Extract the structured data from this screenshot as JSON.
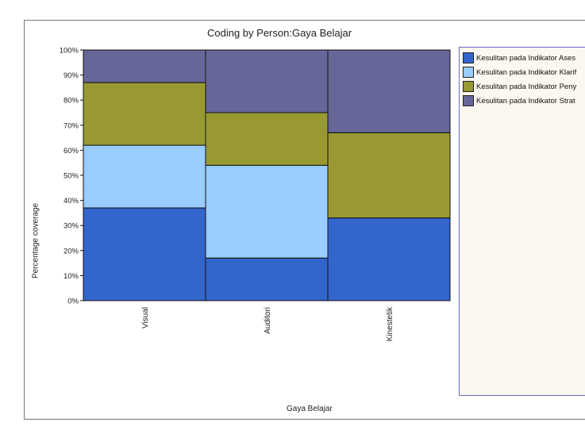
{
  "chart_data": {
    "type": "bar",
    "stacked": true,
    "percent": true,
    "title": "Coding by Person:Gaya Belajar",
    "xlabel": "Gaya Belajar",
    "ylabel": "Percentage coverage",
    "categories": [
      "Visual",
      "Auditori",
      "Kinestetik"
    ],
    "yticks": [
      "0%",
      "10%",
      "20%",
      "30%",
      "40%",
      "50%",
      "60%",
      "70%",
      "80%",
      "90%",
      "100%"
    ],
    "ylim": [
      0,
      100
    ],
    "legend_position": "right",
    "series": [
      {
        "name": "Kesulitan pada Indikator Ases",
        "color": "#3366cc",
        "values": [
          37,
          17,
          33
        ]
      },
      {
        "name": "Kesulitan pada Indikator Klarif",
        "color": "#99ccff",
        "values": [
          25,
          37,
          0
        ]
      },
      {
        "name": "Kesulitan pada Indikator Peny",
        "color": "#999933",
        "values": [
          25,
          21,
          34
        ]
      },
      {
        "name": "Kesulitan pada Indikator Strat",
        "color": "#666699",
        "values": [
          13,
          25,
          33
        ]
      }
    ]
  }
}
